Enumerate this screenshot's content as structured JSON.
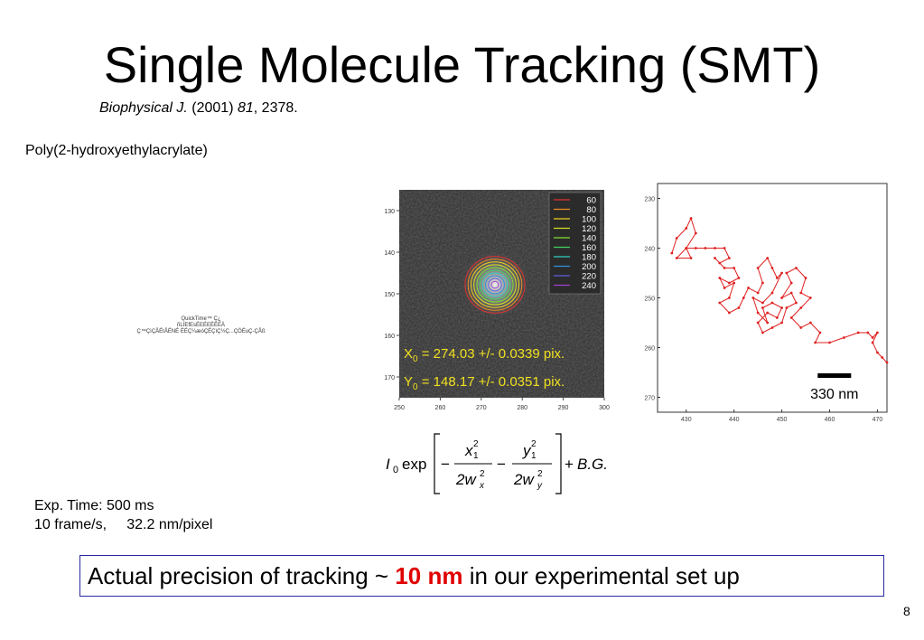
{
  "slide": {
    "title": "Single Molecule Tracking (SMT)",
    "citation": {
      "journal": "Biophysical J.",
      "year": "(2001)",
      "volume": "81",
      "pages": ", 2378."
    },
    "polymer": "Poly(2-hydroxyethylacrylate)",
    "quicktime_placeholder": [
      "QuickTime™ Ç¿",
      "ñLIEfEsÉEÉEËÉÉÀ",
      "Ç™ÇìÇÅÉtÅËNÉ ËÉÇ¼æóÇÉÇìÇ½Ç...ÇÖËuÇ-ÇÅß"
    ],
    "exposure": "Exp. Time: 500 ms",
    "frame_rate": "10 frame/s,     32.2 nm/pixel",
    "precision": {
      "prefix": "Actual precision of tracking ~ ",
      "value": "10 nm",
      "suffix": " in our experimental set up"
    },
    "page_number": "8"
  },
  "image_panel": {
    "x_ticks": [
      "250",
      "260",
      "270",
      "280",
      "290",
      "300"
    ],
    "y_ticks": [
      "130",
      "140",
      "150",
      "160",
      "170"
    ],
    "legend": [
      {
        "label": "60",
        "color": "#e03030"
      },
      {
        "label": "80",
        "color": "#f08a20"
      },
      {
        "label": "100",
        "color": "#f0d020"
      },
      {
        "label": "120",
        "color": "#d8e020"
      },
      {
        "label": "140",
        "color": "#80e030"
      },
      {
        "label": "160",
        "color": "#40d060"
      },
      {
        "label": "180",
        "color": "#30d0c0"
      },
      {
        "label": "200",
        "color": "#3090e0"
      },
      {
        "label": "220",
        "color": "#6060e0"
      },
      {
        "label": "240",
        "color": "#a040d0"
      }
    ],
    "x0": {
      "sym": "X",
      "sub": "0",
      "text": " = 274.03 +/- 0.0339 pix."
    },
    "y0": {
      "sym": "Y",
      "sub": "0",
      "text": " = 148.17 +/- 0.0351 pix."
    }
  },
  "chart_data": {
    "type": "line",
    "x_ticks": [
      "430",
      "440",
      "450",
      "460",
      "470"
    ],
    "y_ticks": [
      "230",
      "240",
      "250",
      "260",
      "270"
    ],
    "xlim": [
      424,
      472
    ],
    "ylim": [
      227,
      273
    ],
    "series_color": "#e02020",
    "scale_bar_label": "330 nm",
    "scale_bar_length": 7,
    "points": [
      [
        427,
        241
      ],
      [
        428,
        238
      ],
      [
        430,
        236
      ],
      [
        431,
        234
      ],
      [
        432,
        237
      ],
      [
        430,
        240
      ],
      [
        431,
        242
      ],
      [
        428,
        242
      ],
      [
        430,
        240
      ],
      [
        432,
        240
      ],
      [
        434,
        240
      ],
      [
        436,
        240
      ],
      [
        438,
        240
      ],
      [
        439,
        242
      ],
      [
        437,
        243
      ],
      [
        436,
        242
      ],
      [
        438,
        244
      ],
      [
        440,
        244
      ],
      [
        441,
        246
      ],
      [
        439,
        247
      ],
      [
        437,
        246
      ],
      [
        438,
        248
      ],
      [
        440,
        247
      ],
      [
        439,
        250
      ],
      [
        437,
        251
      ],
      [
        439,
        253
      ],
      [
        441,
        252
      ],
      [
        442,
        250
      ],
      [
        443,
        248
      ],
      [
        445,
        249
      ],
      [
        446,
        247
      ],
      [
        445,
        244
      ],
      [
        447,
        242
      ],
      [
        448,
        244
      ],
      [
        449,
        246
      ],
      [
        450,
        245
      ],
      [
        448,
        249
      ],
      [
        446,
        251
      ],
      [
        444,
        250
      ],
      [
        445,
        253
      ],
      [
        447,
        255
      ],
      [
        446,
        252
      ],
      [
        448,
        251
      ],
      [
        450,
        252
      ],
      [
        449,
        254
      ],
      [
        447,
        253
      ],
      [
        445,
        255
      ],
      [
        446,
        257
      ],
      [
        448,
        256
      ],
      [
        450,
        255
      ],
      [
        451,
        252
      ],
      [
        453,
        251
      ],
      [
        452,
        249
      ],
      [
        450,
        250
      ],
      [
        452,
        247
      ],
      [
        451,
        245
      ],
      [
        453,
        244
      ],
      [
        455,
        246
      ],
      [
        454,
        249
      ],
      [
        456,
        250
      ],
      [
        454,
        252
      ],
      [
        452,
        254
      ],
      [
        454,
        256
      ],
      [
        456,
        255
      ],
      [
        458,
        257
      ],
      [
        457,
        259
      ],
      [
        460,
        259
      ],
      [
        463,
        258
      ],
      [
        466,
        257
      ],
      [
        468,
        257
      ],
      [
        469,
        258
      ],
      [
        470,
        257
      ],
      [
        469,
        259
      ],
      [
        470,
        261
      ],
      [
        471,
        262
      ],
      [
        472,
        263
      ]
    ]
  },
  "equation": {
    "I": "I",
    "I_sub": "0",
    "exp": "exp",
    "x": "x",
    "y": "y",
    "sub1": "1",
    "sup2": "2",
    "two_w": "2w",
    "sub_x": "x",
    "sub_y": "y",
    "minus": "−",
    "plus": "+",
    "bg": "B.G."
  }
}
